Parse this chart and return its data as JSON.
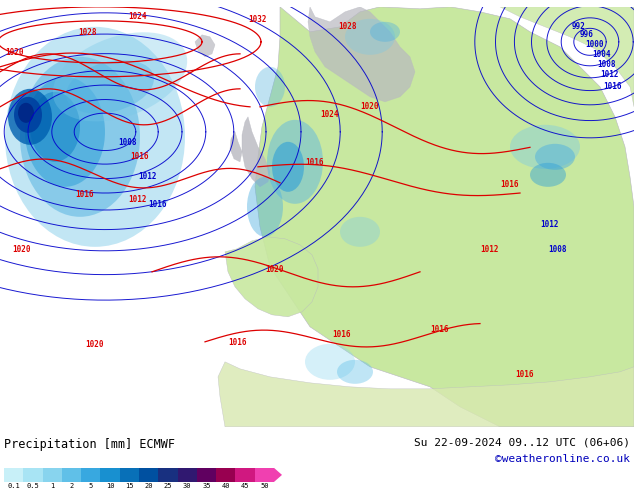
{
  "title_left": "Precipitation [mm] ECMWF",
  "title_right": "Su 22-09-2024 09..12 UTC (06+06)",
  "credit": "©weatheronline.co.uk",
  "colorbar_levels": [
    0.1,
    0.5,
    1,
    2,
    5,
    10,
    15,
    20,
    25,
    30,
    35,
    40,
    45,
    50
  ],
  "colorbar_colors": [
    "#c8f0f8",
    "#a8e4f4",
    "#88d4ee",
    "#60c0e8",
    "#38a8e0",
    "#1890d0",
    "#0870b8",
    "#0050a0",
    "#183080",
    "#301870",
    "#600060",
    "#980050",
    "#d01880",
    "#f040b0"
  ],
  "ocean_color": "#e8f4fc",
  "land_color": "#c8e8a0",
  "gray_land_color": "#b8b8c0",
  "fig_bg_color": "#ffffff",
  "credit_color": "#0000bb",
  "title_color": "#000000",
  "red_color": "#dd0000",
  "blue_color": "#0000cc",
  "figsize": [
    6.34,
    4.9
  ],
  "dpi": 100
}
